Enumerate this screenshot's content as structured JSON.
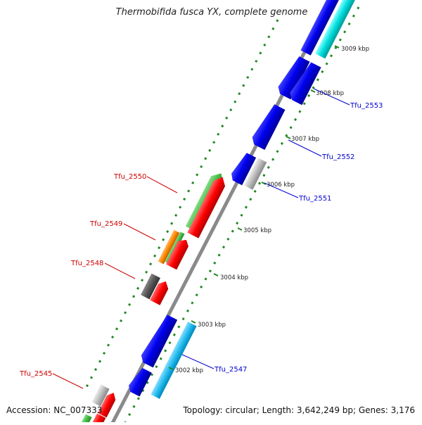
{
  "title": "Thermobifida fusca YX, complete genome",
  "footer": {
    "accession": "Accession: NC_007333",
    "topology": "Topology: circular; Length: 3,642,249 bp; Genes: 3,176"
  },
  "colors": {
    "backbone": "#909090",
    "tick_marks": "#228822",
    "forward_label": "#cc0000",
    "reverse_label": "#0000cc",
    "cds_red": "#ff0000",
    "cds_green": "#44bb44",
    "cds_orange": "#ff8800",
    "cds_blue": "#0000ee",
    "cds_cyan": "#00dddd",
    "cds_gray": "#bbbbbb",
    "cds_dark_gray": "#555555"
  },
  "scale_labels": [
    "3002 kbp",
    "3003 kbp",
    "3004 kbp",
    "3005 kbp",
    "3006 kbp",
    "3007 kbp",
    "3008 kbp",
    "3009 kbp"
  ],
  "gene_labels": [
    {
      "text": "Tfu_2553",
      "strand": "reverse"
    },
    {
      "text": "Tfu_2552",
      "strand": "reverse"
    },
    {
      "text": "Tfu_2551",
      "strand": "reverse"
    },
    {
      "text": "Tfu_2550",
      "strand": "forward"
    },
    {
      "text": "Tfu_2549",
      "strand": "forward"
    },
    {
      "text": "Tfu_2548",
      "strand": "forward"
    },
    {
      "text": "Tfu_2547",
      "strand": "reverse"
    },
    {
      "text": "Tfu_2545",
      "strand": "forward"
    }
  ]
}
